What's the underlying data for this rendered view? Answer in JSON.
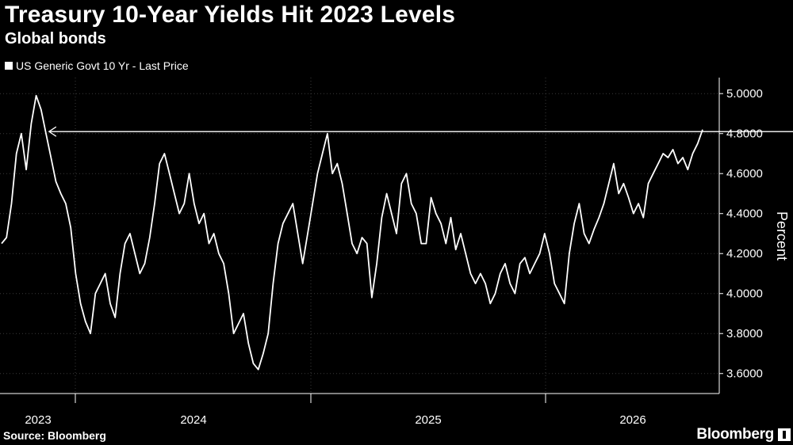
{
  "header": {
    "title": "Treasury 10-Year Yields Hit 2023 Levels",
    "subtitle": "Global bonds"
  },
  "legend": {
    "label": "US Generic Govt 10 Yr - Last Price",
    "swatch_color": "#ffffff"
  },
  "footer": {
    "source": "Source: Bloomberg",
    "brand": "Bloomberg"
  },
  "colors": {
    "background": "#000000",
    "line": "#ffffff",
    "grid": "#3a3a3a",
    "text": "#ffffff"
  },
  "chart_data": {
    "type": "line",
    "title": "Treasury 10-Year Yields Hit 2023 Levels",
    "subtitle": "Global bonds",
    "ylabel": "Percent",
    "ylim": [
      3.5,
      5.08
    ],
    "y_ticks": [
      "3.6000",
      "3.8000",
      "4.0000",
      "4.2000",
      "4.4000",
      "4.6000",
      "4.8000",
      "5.0000"
    ],
    "x_tick_labels": [
      "2023",
      "2024",
      "2025",
      "2026"
    ],
    "grid": true,
    "legend_position": "top-left",
    "annotation": {
      "type": "horizontal-arrow",
      "value": 4.81,
      "from_index": 185,
      "to_index": 8
    },
    "series": [
      {
        "name": "US Generic Govt 10 Yr - Last Price",
        "values": [
          4.25,
          4.28,
          4.45,
          4.7,
          4.8,
          4.62,
          4.85,
          4.99,
          4.92,
          4.8,
          4.68,
          4.56,
          4.5,
          4.45,
          4.33,
          4.1,
          3.95,
          3.86,
          3.8,
          4.0,
          4.05,
          4.1,
          3.95,
          3.88,
          4.1,
          4.25,
          4.3,
          4.2,
          4.1,
          4.15,
          4.28,
          4.45,
          4.65,
          4.7,
          4.6,
          4.5,
          4.4,
          4.45,
          4.6,
          4.45,
          4.35,
          4.4,
          4.25,
          4.3,
          4.2,
          4.15,
          4.0,
          3.8,
          3.85,
          3.9,
          3.75,
          3.65,
          3.62,
          3.7,
          3.8,
          4.05,
          4.25,
          4.35,
          4.4,
          4.45,
          4.3,
          4.15,
          4.3,
          4.45,
          4.6,
          4.7,
          4.8,
          4.6,
          4.65,
          4.55,
          4.4,
          4.25,
          4.2,
          4.28,
          4.25,
          3.98,
          4.15,
          4.38,
          4.5,
          4.4,
          4.3,
          4.55,
          4.6,
          4.45,
          4.4,
          4.25,
          4.25,
          4.48,
          4.4,
          4.35,
          4.25,
          4.38,
          4.22,
          4.3,
          4.2,
          4.1,
          4.05,
          4.1,
          4.05,
          3.95,
          4.0,
          4.1,
          4.15,
          4.05,
          4.0,
          4.15,
          4.18,
          4.1,
          4.15,
          4.2,
          4.3,
          4.2,
          4.05,
          4.0,
          3.95,
          4.2,
          4.35,
          4.45,
          4.3,
          4.25,
          4.32,
          4.38,
          4.45,
          4.55,
          4.65,
          4.5,
          4.55,
          4.48,
          4.4,
          4.45,
          4.38,
          4.55,
          4.6,
          4.65,
          4.7,
          4.68,
          4.72,
          4.65,
          4.68,
          4.62,
          4.7,
          4.75,
          4.82
        ]
      }
    ]
  }
}
